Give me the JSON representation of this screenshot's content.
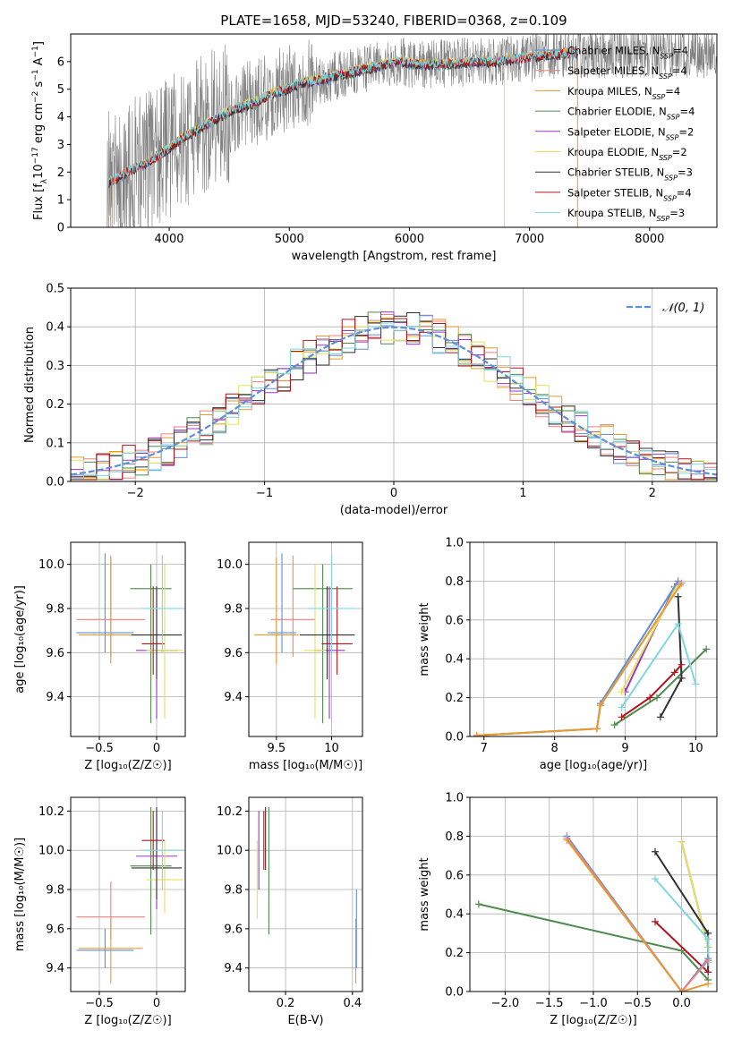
{
  "title": "PLATE=1658, MJD=53240, FIBERID=0368, z=0.109",
  "colors": {
    "chabrier_miles": "#5b8fd9",
    "salpeter_miles": "#f07f80",
    "kroupa_miles": "#e69a30",
    "chabrier_elodie": "#4e8a4e",
    "salpeter_elodie": "#9b35c9",
    "kroupa_elodie": "#e3e25a",
    "chabrier_stelib": "#303030",
    "salpeter_stelib": "#b0141e",
    "kroupa_stelib": "#7fd6e1",
    "data": "#7f7f7f",
    "grid": "#b0b0b0",
    "normal": "#5b8fd9"
  },
  "chart_data": [
    {
      "type": "line",
      "name": "spectrum",
      "xlabel": "wavelength [Angstrom, rest frame]",
      "ylabel_parts": [
        "Flux [f",
        "λ",
        "10",
        "−17",
        " erg cm",
        "−2",
        " s",
        "−1",
        " A",
        "−1",
        "]"
      ],
      "xlim": [
        3180,
        8560
      ],
      "ylim": [
        0,
        7
      ],
      "xticks": [
        4000,
        5000,
        6000,
        7000,
        8000
      ],
      "yticks": [
        0,
        1,
        2,
        3,
        4,
        5,
        6
      ],
      "continuum": {
        "x": [
          3500,
          3650,
          3800,
          3950,
          4100,
          4300,
          4500,
          4700,
          4900,
          5100,
          5300,
          5500,
          5700,
          5900,
          6100,
          6300,
          6500,
          6700,
          6900,
          7100,
          7300,
          7400
        ],
        "y": [
          1.6,
          2.0,
          2.3,
          2.7,
          3.2,
          3.7,
          4.2,
          4.5,
          4.9,
          5.2,
          5.4,
          5.6,
          5.8,
          6.0,
          5.9,
          5.9,
          6.0,
          6.0,
          6.1,
          6.2,
          6.3,
          6.3
        ]
      },
      "legend": [
        {
          "label": "Chabrier MILES",
          "n": "4",
          "color_key": "chabrier_miles"
        },
        {
          "label": "Salpeter MILES",
          "n": "4",
          "color_key": "salpeter_miles"
        },
        {
          "label": "Kroupa MILES",
          "n": "4",
          "color_key": "kroupa_miles"
        },
        {
          "label": "Chabrier ELODIE",
          "n": "4",
          "color_key": "chabrier_elodie"
        },
        {
          "label": "Salpeter ELODIE",
          "n": "2",
          "color_key": "salpeter_elodie"
        },
        {
          "label": "Kroupa ELODIE",
          "n": "2",
          "color_key": "kroupa_elodie"
        },
        {
          "label": "Chabrier STELIB",
          "n": "3",
          "color_key": "chabrier_stelib"
        },
        {
          "label": "Salpeter STELIB",
          "n": "4",
          "color_key": "salpeter_stelib"
        },
        {
          "label": "Kroupa STELIB",
          "n": "3",
          "color_key": "kroupa_stelib"
        }
      ],
      "legend_placement": "right",
      "nssp_sub": "SSP"
    },
    {
      "type": "histogram",
      "name": "residuals",
      "xlabel": "(data-model)/error",
      "ylabel": "Normed distribution",
      "xlim": [
        -2.5,
        2.5
      ],
      "ylim": [
        0,
        0.5
      ],
      "xticks": [
        -2,
        -1,
        0,
        1,
        2
      ],
      "yticks": [
        0.0,
        0.1,
        0.2,
        0.3,
        0.4,
        0.5
      ],
      "bin_width": 0.1,
      "legend": "𝒩(0, 1)",
      "legend_placement": "top-right",
      "grid": true
    },
    {
      "type": "scatter",
      "name": "age-vs-metallicity",
      "xlabel": "Z [log₁₀(Z/Z☉)]",
      "ylabel": "age  [log₁₀(age/yr)]",
      "xlim": [
        -0.75,
        0.25
      ],
      "ylim": [
        9.22,
        10.1
      ],
      "xticks": [
        -0.5,
        0.0
      ],
      "yticks": [
        9.4,
        9.6,
        9.8,
        10.0
      ],
      "points": [
        {
          "key": "chabrier_miles",
          "x": -0.45,
          "y": 9.69,
          "xerr": 0.25,
          "yerr": [
            9.6,
            10.05
          ]
        },
        {
          "key": "salpeter_miles",
          "x": -0.4,
          "y": 9.75,
          "xerr": 0.3,
          "yerr": [
            9.58,
            10.04
          ]
        },
        {
          "key": "kroupa_miles",
          "x": -0.4,
          "y": 9.68,
          "xerr": 0.28,
          "yerr": [
            9.55,
            10.03
          ]
        },
        {
          "key": "chabrier_elodie",
          "x": -0.05,
          "y": 9.89,
          "xerr": 0.18,
          "yerr": [
            9.28,
            10.0
          ]
        },
        {
          "key": "salpeter_elodie",
          "x": 0.0,
          "y": 9.61,
          "xerr": 0.18,
          "yerr": [
            9.3,
            9.9
          ]
        },
        {
          "key": "kroupa_elodie",
          "x": 0.07,
          "y": 9.61,
          "xerr": 0.16,
          "yerr": [
            9.3,
            10.0
          ]
        },
        {
          "key": "chabrier_stelib",
          "x": 0.0,
          "y": 9.68,
          "xerr": 0.22,
          "yerr": [
            9.48,
            9.9
          ]
        },
        {
          "key": "salpeter_stelib",
          "x": -0.03,
          "y": 9.64,
          "xerr": 0.1,
          "yerr": [
            9.5,
            9.9
          ]
        },
        {
          "key": "kroupa_stelib",
          "x": 0.05,
          "y": 9.8,
          "xerr": 0.18,
          "yerr": [
            9.6,
            10.04
          ]
        }
      ],
      "grid": true
    },
    {
      "type": "scatter",
      "name": "age-vs-mass",
      "xlabel": "mass [log₁₀(M/M☉)]",
      "ylabel": "",
      "xlim": [
        9.25,
        10.28
      ],
      "ylim": [
        9.22,
        10.1
      ],
      "xticks": [
        9.5,
        10.0
      ],
      "yticks": [
        9.4,
        9.6,
        9.8,
        10.0
      ],
      "points": [
        {
          "key": "chabrier_miles",
          "x": 9.55,
          "y": 9.69,
          "xerr": 0.13,
          "yerr": [
            9.6,
            10.05
          ]
        },
        {
          "key": "salpeter_miles",
          "x": 9.65,
          "y": 9.75,
          "xerr": 0.2,
          "yerr": [
            9.58,
            10.04
          ]
        },
        {
          "key": "kroupa_miles",
          "x": 9.5,
          "y": 9.68,
          "xerr": 0.2,
          "yerr": [
            9.55,
            10.03
          ]
        },
        {
          "key": "chabrier_elodie",
          "x": 9.92,
          "y": 9.89,
          "xerr": 0.27,
          "yerr": [
            9.28,
            10.0
          ]
        },
        {
          "key": "salpeter_elodie",
          "x": 9.98,
          "y": 9.61,
          "xerr": 0.14,
          "yerr": [
            9.3,
            9.9
          ]
        },
        {
          "key": "kroupa_elodie",
          "x": 9.85,
          "y": 9.61,
          "xerr": 0.1,
          "yerr": [
            9.3,
            10.0
          ]
        },
        {
          "key": "chabrier_stelib",
          "x": 9.96,
          "y": 9.68,
          "xerr": 0.25,
          "yerr": [
            9.48,
            9.9
          ]
        },
        {
          "key": "salpeter_stelib",
          "x": 10.05,
          "y": 9.64,
          "xerr": 0.14,
          "yerr": [
            9.5,
            9.9
          ]
        },
        {
          "key": "kroupa_stelib",
          "x": 10.0,
          "y": 9.8,
          "xerr": 0.22,
          "yerr": [
            9.6,
            10.04
          ]
        }
      ],
      "grid": true
    },
    {
      "type": "line",
      "name": "mass-weight-vs-age",
      "xlabel": "age  [log₁₀(age/yr)]",
      "ylabel": "mass weight",
      "xlim": [
        6.8,
        10.3
      ],
      "ylim": [
        0,
        1.0
      ],
      "xticks": [
        7,
        8,
        9,
        10
      ],
      "yticks": [
        0.0,
        0.2,
        0.4,
        0.6,
        0.8,
        1.0
      ],
      "series": [
        {
          "key": "chabrier_elodie",
          "x": [
            8.85,
            9.45,
            10.15
          ],
          "y": [
            0.06,
            0.2,
            0.45
          ]
        },
        {
          "key": "salpeter_elodie",
          "x": [
            9.0,
            9.7
          ],
          "y": [
            0.23,
            0.77
          ]
        },
        {
          "key": "kroupa_elodie",
          "x": [
            8.95,
            9.72
          ],
          "y": [
            0.23,
            0.77
          ]
        },
        {
          "key": "chabrier_stelib",
          "x": [
            9.5,
            9.8,
            9.75
          ],
          "y": [
            0.1,
            0.3,
            0.72
          ]
        },
        {
          "key": "salpeter_stelib",
          "x": [
            8.95,
            9.35,
            9.7,
            9.8
          ],
          "y": [
            0.1,
            0.2,
            0.33,
            0.37
          ]
        },
        {
          "key": "kroupa_stelib",
          "x": [
            8.95,
            9.75,
            10.0
          ],
          "y": [
            0.15,
            0.58,
            0.27
          ]
        },
        {
          "key": "chabrier_miles",
          "x": [
            6.9,
            8.6,
            8.65,
            9.75
          ],
          "y": [
            0.005,
            0.04,
            0.17,
            0.8
          ]
        },
        {
          "key": "salpeter_miles",
          "x": [
            6.9,
            8.6,
            8.65,
            9.8
          ],
          "y": [
            0.005,
            0.04,
            0.16,
            0.79
          ]
        },
        {
          "key": "kroupa_miles",
          "x": [
            6.9,
            8.6,
            8.65,
            9.78
          ],
          "y": [
            0.005,
            0.04,
            0.16,
            0.78
          ]
        }
      ],
      "grid": true
    },
    {
      "type": "scatter",
      "name": "mass-vs-metallicity",
      "xlabel": "Z [log₁₀(Z/Z☉)]",
      "ylabel": "mass [log₁₀(M/M☉)]",
      "xlim": [
        -0.75,
        0.25
      ],
      "ylim": [
        9.28,
        10.27
      ],
      "xticks": [
        -0.5,
        0.0
      ],
      "yticks": [
        9.4,
        9.6,
        9.8,
        10.0,
        10.2
      ],
      "points": [
        {
          "key": "chabrier_miles",
          "x": -0.45,
          "y": 9.49,
          "xerr": 0.25,
          "yerr": [
            9.4,
            9.6
          ]
        },
        {
          "key": "salpeter_miles",
          "x": -0.4,
          "y": 9.66,
          "xerr": 0.3,
          "yerr": [
            9.55,
            9.84
          ]
        },
        {
          "key": "kroupa_miles",
          "x": -0.4,
          "y": 9.5,
          "xerr": 0.28,
          "yerr": [
            9.32,
            9.65
          ]
        },
        {
          "key": "chabrier_elodie",
          "x": -0.05,
          "y": 9.92,
          "xerr": 0.18,
          "yerr": [
            9.57,
            10.22
          ]
        },
        {
          "key": "salpeter_elodie",
          "x": 0.0,
          "y": 9.97,
          "xerr": 0.18,
          "yerr": [
            9.7,
            10.2
          ]
        },
        {
          "key": "kroupa_elodie",
          "x": 0.07,
          "y": 9.85,
          "xerr": 0.16,
          "yerr": [
            9.68,
            10.05
          ]
        },
        {
          "key": "chabrier_stelib",
          "x": 0.0,
          "y": 9.91,
          "xerr": 0.22,
          "yerr": [
            9.75,
            10.22
          ]
        },
        {
          "key": "salpeter_stelib",
          "x": -0.03,
          "y": 10.05,
          "xerr": 0.1,
          "yerr": [
            9.9,
            10.2
          ]
        },
        {
          "key": "kroupa_stelib",
          "x": 0.05,
          "y": 10.0,
          "xerr": 0.18,
          "yerr": [
            9.8,
            10.2
          ]
        }
      ],
      "grid": true
    },
    {
      "type": "scatter",
      "name": "mass-vs-extinction",
      "xlabel": "E(B-V)",
      "ylabel": "",
      "xlim": [
        0.09,
        0.43
      ],
      "ylim": [
        9.28,
        10.27
      ],
      "xticks": [
        0.2,
        0.4
      ],
      "yticks": [
        9.4,
        9.6,
        9.8,
        10.0,
        10.2
      ],
      "points": [
        {
          "key": "kroupa_elodie",
          "x": 0.115,
          "y": 9.85,
          "yerr": [
            9.65,
            10.05
          ]
        },
        {
          "key": "salpeter_elodie",
          "x": 0.12,
          "y": 10.0,
          "yerr": [
            9.8,
            10.2
          ]
        },
        {
          "key": "salpeter_stelib",
          "x": 0.135,
          "y": 10.05,
          "yerr": [
            9.9,
            10.2
          ]
        },
        {
          "key": "chabrier_elodie",
          "x": 0.15,
          "y": 9.9,
          "yerr": [
            9.57,
            10.22
          ]
        },
        {
          "key": "chabrier_stelib",
          "x": 0.14,
          "y": 10.0,
          "yerr": [
            9.9,
            10.22
          ]
        },
        {
          "key": "kroupa_miles",
          "x": 0.41,
          "y": 9.5,
          "yerr": [
            9.32,
            9.65
          ]
        },
        {
          "key": "chabrier_miles",
          "x": 0.412,
          "y": 9.6,
          "yerr": [
            9.4,
            9.8
          ]
        }
      ],
      "grid": true
    },
    {
      "type": "line",
      "name": "mass-weight-vs-metallicity",
      "xlabel": "Z [log₁₀(Z/Z☉)]",
      "ylabel": "mass weight",
      "xlim": [
        -2.4,
        0.4
      ],
      "ylim": [
        0,
        1.0
      ],
      "xticks": [
        -2.0,
        -1.5,
        -1.0,
        -0.5,
        0.0
      ],
      "yticks": [
        0.0,
        0.2,
        0.4,
        0.6,
        0.8,
        1.0
      ],
      "series": [
        {
          "key": "chabrier_elodie",
          "x": [
            -2.3,
            0.0,
            0.3
          ],
          "y": [
            0.45,
            0.21,
            0.06
          ]
        },
        {
          "key": "salpeter_elodie",
          "x": [
            0.0,
            0.3
          ],
          "y": [
            0.77,
            0.23
          ]
        },
        {
          "key": "kroupa_elodie",
          "x": [
            0.0,
            0.3
          ],
          "y": [
            0.77,
            0.23
          ]
        },
        {
          "key": "chabrier_stelib",
          "x": [
            -0.3,
            0.3,
            0.3
          ],
          "y": [
            0.72,
            0.3,
            0.1
          ]
        },
        {
          "key": "salpeter_stelib",
          "x": [
            -0.3,
            0.3
          ],
          "y": [
            0.36,
            0.1
          ]
        },
        {
          "key": "kroupa_stelib",
          "x": [
            -0.3,
            0.3,
            0.3
          ],
          "y": [
            0.58,
            0.27,
            0.15
          ]
        },
        {
          "key": "chabrier_miles",
          "x": [
            -1.3,
            0.0,
            0.3
          ],
          "y": [
            0.8,
            0.0,
            0.17
          ]
        },
        {
          "key": "salpeter_miles",
          "x": [
            -1.3,
            0.0,
            0.3
          ],
          "y": [
            0.79,
            0.0,
            0.16
          ]
        },
        {
          "key": "kroupa_miles",
          "x": [
            -1.3,
            0.0,
            0.3
          ],
          "y": [
            0.78,
            0.0,
            0.04
          ]
        }
      ],
      "grid": true
    }
  ]
}
